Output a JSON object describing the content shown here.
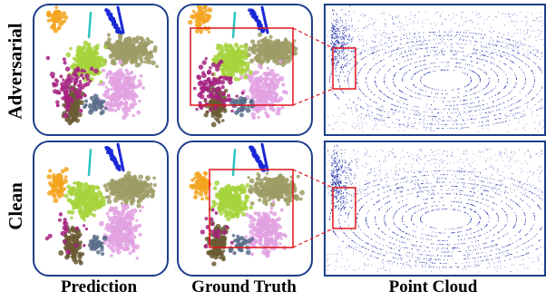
{
  "row_labels": [
    "Adversarial",
    "Clean"
  ],
  "column_labels": [
    "Prediction",
    "Ground Truth",
    "Point Cloud"
  ],
  "colors": {
    "panel_border": "#1d3f8a",
    "highlight_box": "#e0141c",
    "point_cloud": "#2233aa",
    "olive": "#9e9c66",
    "lime": "#a6d43c",
    "pink": "#e2a2e2",
    "magenta": "#a62180",
    "orange": "#f3a520",
    "brown": "#6b5a35",
    "blue": "#1a28d6",
    "cyan": "#2ec4c0",
    "slate": "#5a6f8c"
  }
}
